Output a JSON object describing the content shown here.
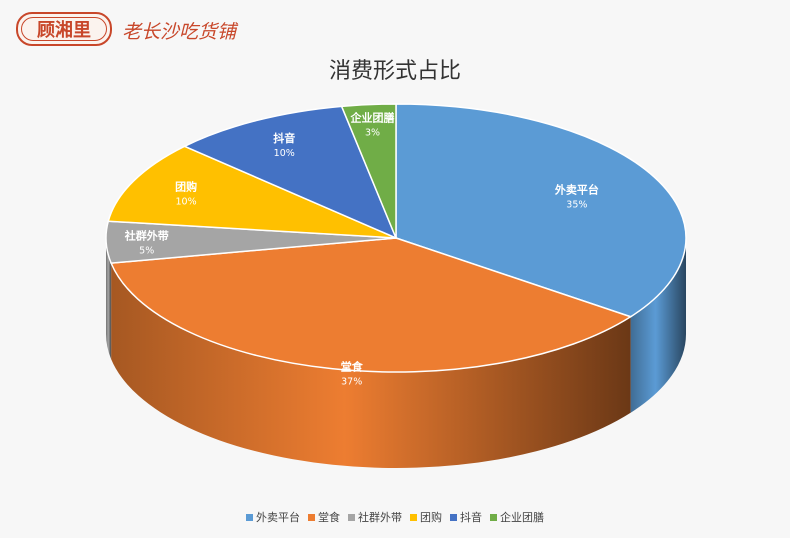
{
  "logo": {
    "badge_text": "顾湘里",
    "tagline": "老长沙吃货铺",
    "brand_color": "#c8472a"
  },
  "chart_data": {
    "type": "pie",
    "title": "消费形式占比",
    "style": "3d",
    "legend_position": "bottom",
    "slices": [
      {
        "name": "外卖平台",
        "value": 35,
        "label": "35%",
        "color": "#5b9bd5"
      },
      {
        "name": "堂食",
        "value": 37,
        "label": "37%",
        "color": "#ed7d31"
      },
      {
        "name": "社群外带",
        "value": 5,
        "label": "5%",
        "color": "#a5a5a5"
      },
      {
        "name": "团购",
        "value": 10,
        "label": "10%",
        "color": "#ffc000"
      },
      {
        "name": "抖音",
        "value": 10,
        "label": "10%",
        "color": "#4472c4"
      },
      {
        "name": "企业团膳",
        "value": 3,
        "label": "3%",
        "color": "#70ad47"
      }
    ]
  }
}
